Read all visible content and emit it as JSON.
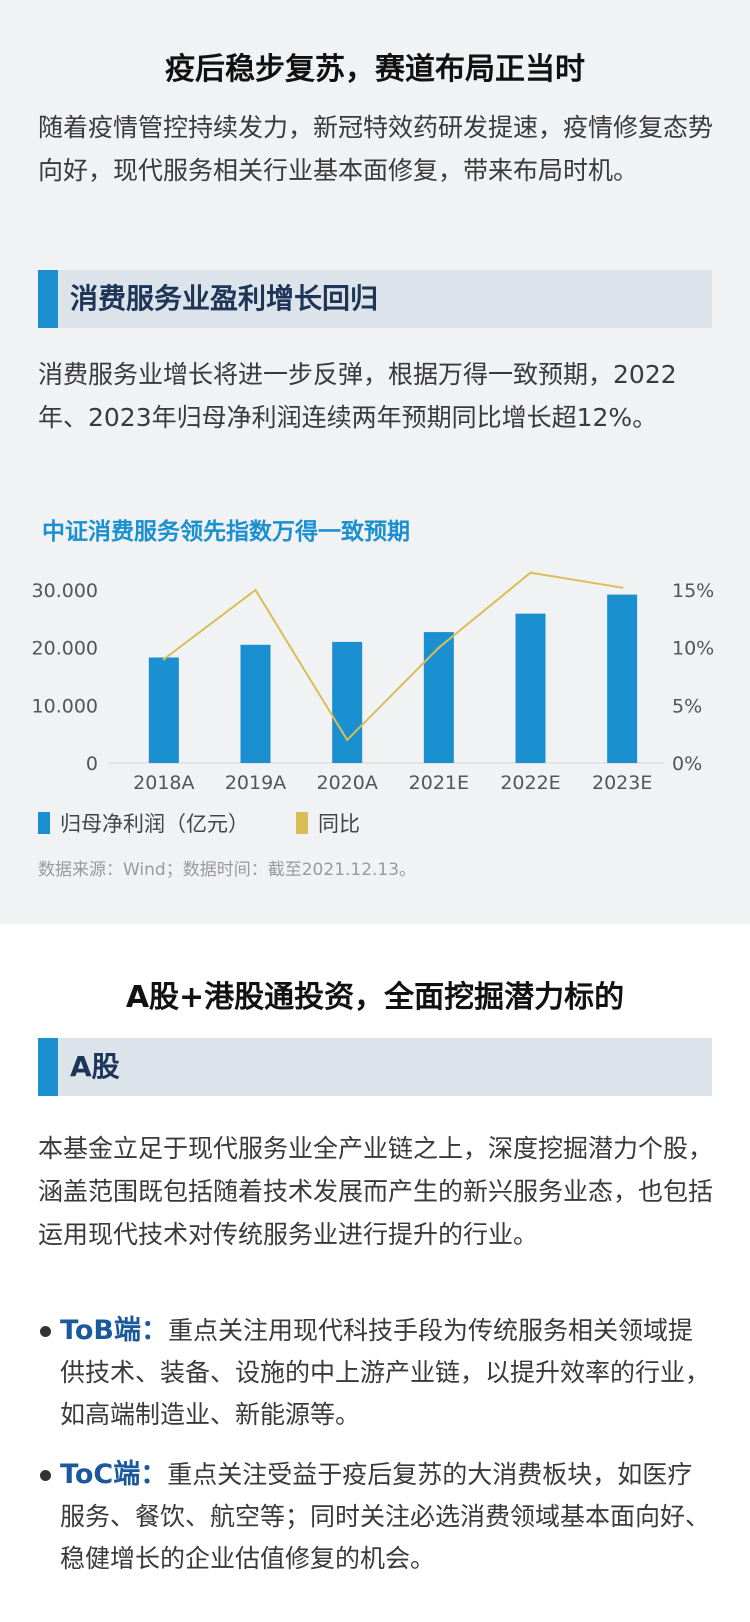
{
  "section1": {
    "title": "疫后稳步复苏，赛道布局正当时",
    "intro": "随着疫情管控持续发力，新冠特效药研发提速，疫情修复态势向好，现代服务相关行业基本面修复，带来布局时机。",
    "subheading": "消费服务业盈利增长回归",
    "body": "消费服务业增长将进一步反弹，根据万得一致预期，2022年、2023年归母净利润连续两年预期同比增长超12%。",
    "chart_title": "中证消费服务领先指数万得一致预期",
    "source": "数据来源：Wind；数据时间：截至2021.12.13。"
  },
  "chart_data": {
    "type": "bar",
    "title": "中证消费服务领先指数万得一致预期",
    "categories": [
      "2018A",
      "2019A",
      "2020A",
      "2021E",
      "2022E",
      "2023E"
    ],
    "series": [
      {
        "name": "归母净利润（亿元）",
        "type": "bar",
        "axis": "left",
        "color": "#1a90d0",
        "values": [
          18300,
          20500,
          21000,
          22700,
          25900,
          29200
        ]
      },
      {
        "name": "同比",
        "type": "line",
        "axis": "right",
        "color": "#d9bd55",
        "values": [
          9.0,
          15.0,
          2.0,
          10.0,
          16.5,
          15.2
        ]
      }
    ],
    "y_left": {
      "range": [
        0,
        30000
      ],
      "ticks": [
        0,
        10000,
        20000,
        30000
      ],
      "tick_labels": [
        "0",
        "10.000",
        "20.000",
        "30.000"
      ]
    },
    "y_right": {
      "range": [
        0,
        15
      ],
      "ticks": [
        0,
        5,
        10,
        15
      ],
      "tick_labels": [
        "0%",
        "5%",
        "10%",
        "15%"
      ]
    },
    "grid": false,
    "legend": "bottom-left"
  },
  "section2": {
    "title": "A股+港股通投资，全面挖掘潜力标的",
    "subheading": "A股",
    "body": "本基金立足于现代服务业全产业链之上，深度挖掘潜力个股，涵盖范围既包括随着技术发展而产生的新兴服务业态，也包括运用现代技术对传统服务业进行提升的行业。",
    "bullets": [
      {
        "label": "ToB端：",
        "text": "重点关注用现代科技手段为传统服务相关领域提供技术、装备、设施的中上游产业链，以提升效率的行业，如高端制造业、新能源等。"
      },
      {
        "label": "ToC端：",
        "text": "重点关注受益于疫后复苏的大消费板块，如医疗服务、餐饮、航空等；同时关注必选消费领域基本面向好、稳健增长的企业估值修复的机会。"
      }
    ]
  },
  "colors": {
    "accent": "#1a90d0",
    "line": "#d9bd55",
    "label_blue": "#1a5a9c",
    "panel_bg": "#f1f2f4",
    "heading_bar": "#dde3ea"
  }
}
